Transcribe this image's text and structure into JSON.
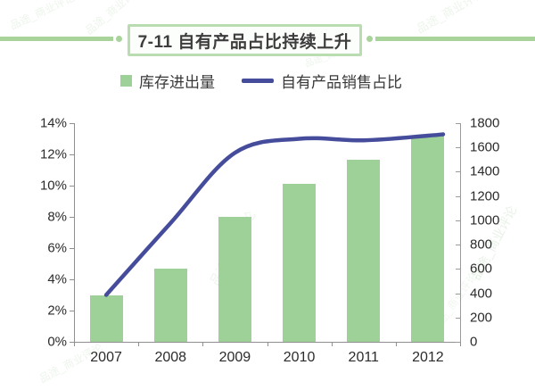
{
  "header": {
    "title": "7-11 自有产品占比持续上升",
    "accent_color": "#a8d49c"
  },
  "legend": {
    "bar": {
      "label": "库存进出量",
      "color": "#9ed197"
    },
    "line": {
      "label": "自有产品销售占比",
      "color": "#454c9b"
    }
  },
  "chart_data": {
    "type": "bar",
    "categories": [
      "2007",
      "2008",
      "2009",
      "2010",
      "2011",
      "2012"
    ],
    "series": [
      {
        "name": "库存进出量",
        "type": "bar",
        "axis": "right",
        "color": "#9ed197",
        "values": [
          380,
          600,
          1030,
          1300,
          1500,
          1700
        ]
      },
      {
        "name": "自有产品销售占比",
        "type": "line",
        "axis": "left",
        "color": "#454c9b",
        "values": [
          3.0,
          7.6,
          12.1,
          13.0,
          12.9,
          13.2
        ]
      }
    ],
    "left_axis": {
      "unit": "%",
      "min": 0,
      "max": 14,
      "step": 2,
      "ticks": [
        "14%",
        "12%",
        "10%",
        "8%",
        "6%",
        "4%",
        "2%",
        "0%"
      ]
    },
    "right_axis": {
      "min": 0,
      "max": 1800,
      "step": 200,
      "ticks": [
        "1800",
        "1600",
        "1400",
        "1200",
        "1000",
        "800",
        "600",
        "400",
        "200",
        "0"
      ]
    },
    "grid": false,
    "legend_position": "top"
  },
  "watermark": {
    "text": "品途_商业评论",
    "color": "#6faf68"
  }
}
